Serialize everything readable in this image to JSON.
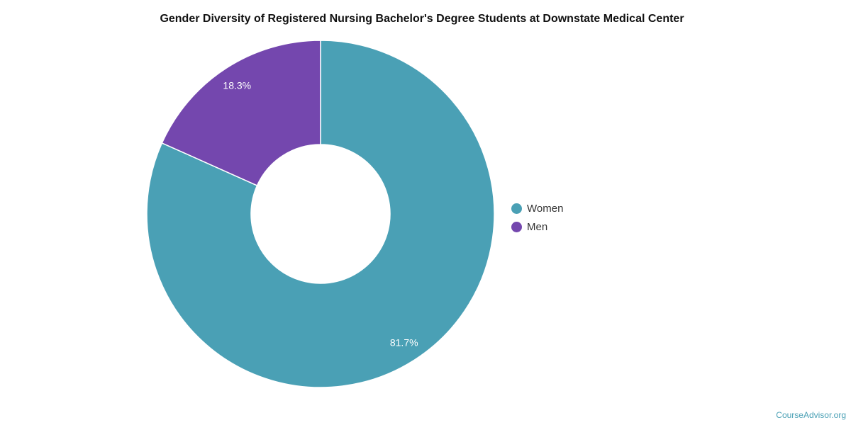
{
  "chart_data": {
    "type": "pie",
    "variant": "donut",
    "title": "Gender Diversity of Registered Nursing Bachelor's Degree Students at Downstate Medical Center",
    "slices": [
      {
        "name": "Women",
        "value": 81.7,
        "label": "81.7%",
        "color": "#4aa0b5"
      },
      {
        "name": "Men",
        "value": 18.3,
        "label": "18.3%",
        "color": "#7447ae"
      }
    ],
    "legend_position": "right"
  },
  "credit": "CourseAdvisor.org"
}
